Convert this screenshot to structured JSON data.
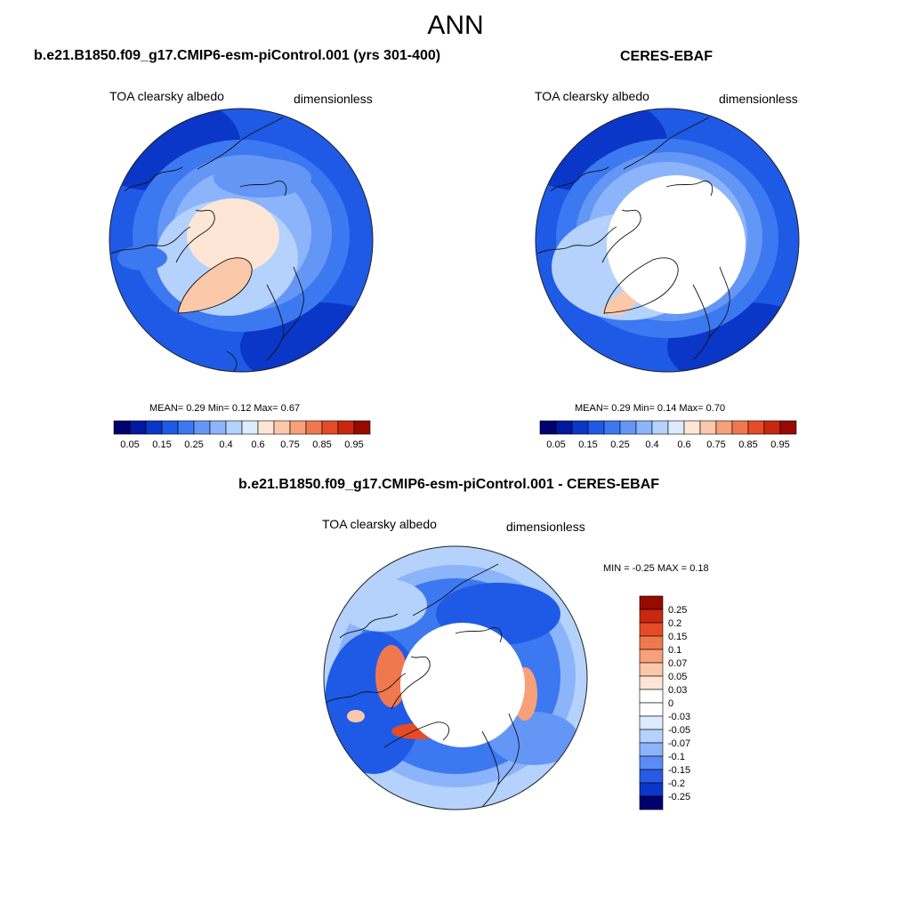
{
  "figure_title": "ANN",
  "panels": [
    {
      "title": "b.e21.B1850.f09_g17.CMIP6-esm-piControl.001 (yrs 301-400)",
      "left_label": "TOA clearsky albedo",
      "right_label": "dimensionless",
      "stats": "MEAN=   0.29   Min=   0.12   Max=   0.67"
    },
    {
      "title": "CERES-EBAF",
      "left_label": "TOA clearsky albedo",
      "right_label": "dimensionless",
      "stats": "MEAN=   0.29   Min=   0.14   Max=   0.70"
    },
    {
      "title": "b.e21.B1850.f09_g17.CMIP6-esm-piControl.001 - CERES-EBAF",
      "left_label": "TOA clearsky albedo",
      "right_label": "dimensionless",
      "stats": "MIN =  -0.25 MAX =   0.18"
    }
  ],
  "colorbar_abs": {
    "colors": [
      "#00006e",
      "#0019a0",
      "#0a37c8",
      "#1e5ae6",
      "#3c78f0",
      "#6496f5",
      "#8cb4fa",
      "#b4d2fc",
      "#dcebff",
      "#fde6d6",
      "#fbc8aa",
      "#f7a07a",
      "#f0784e",
      "#e64b28",
      "#c8280f",
      "#960a00"
    ],
    "labels": [
      "0.05",
      "0.15",
      "0.25",
      "0.4",
      "0.6",
      "0.75",
      "0.85",
      "0.95"
    ]
  },
  "colorbar_diff": {
    "colors": [
      "#960a00",
      "#c8280f",
      "#e64b28",
      "#f0784e",
      "#f7a07a",
      "#fbc8aa",
      "#fde6d6",
      "#ffffff",
      "#ffffff",
      "#dcebff",
      "#b4d2fc",
      "#8cb4fa",
      "#5a8cf5",
      "#285ae6",
      "#0a37c8",
      "#00006e"
    ],
    "labels": [
      "0.25",
      "0.2",
      "0.15",
      "0.1",
      "0.07",
      "0.05",
      "0.03",
      "0",
      "-0.03",
      "-0.05",
      "-0.07",
      "-0.1",
      "-0.15",
      "-0.2",
      "-0.25"
    ]
  }
}
